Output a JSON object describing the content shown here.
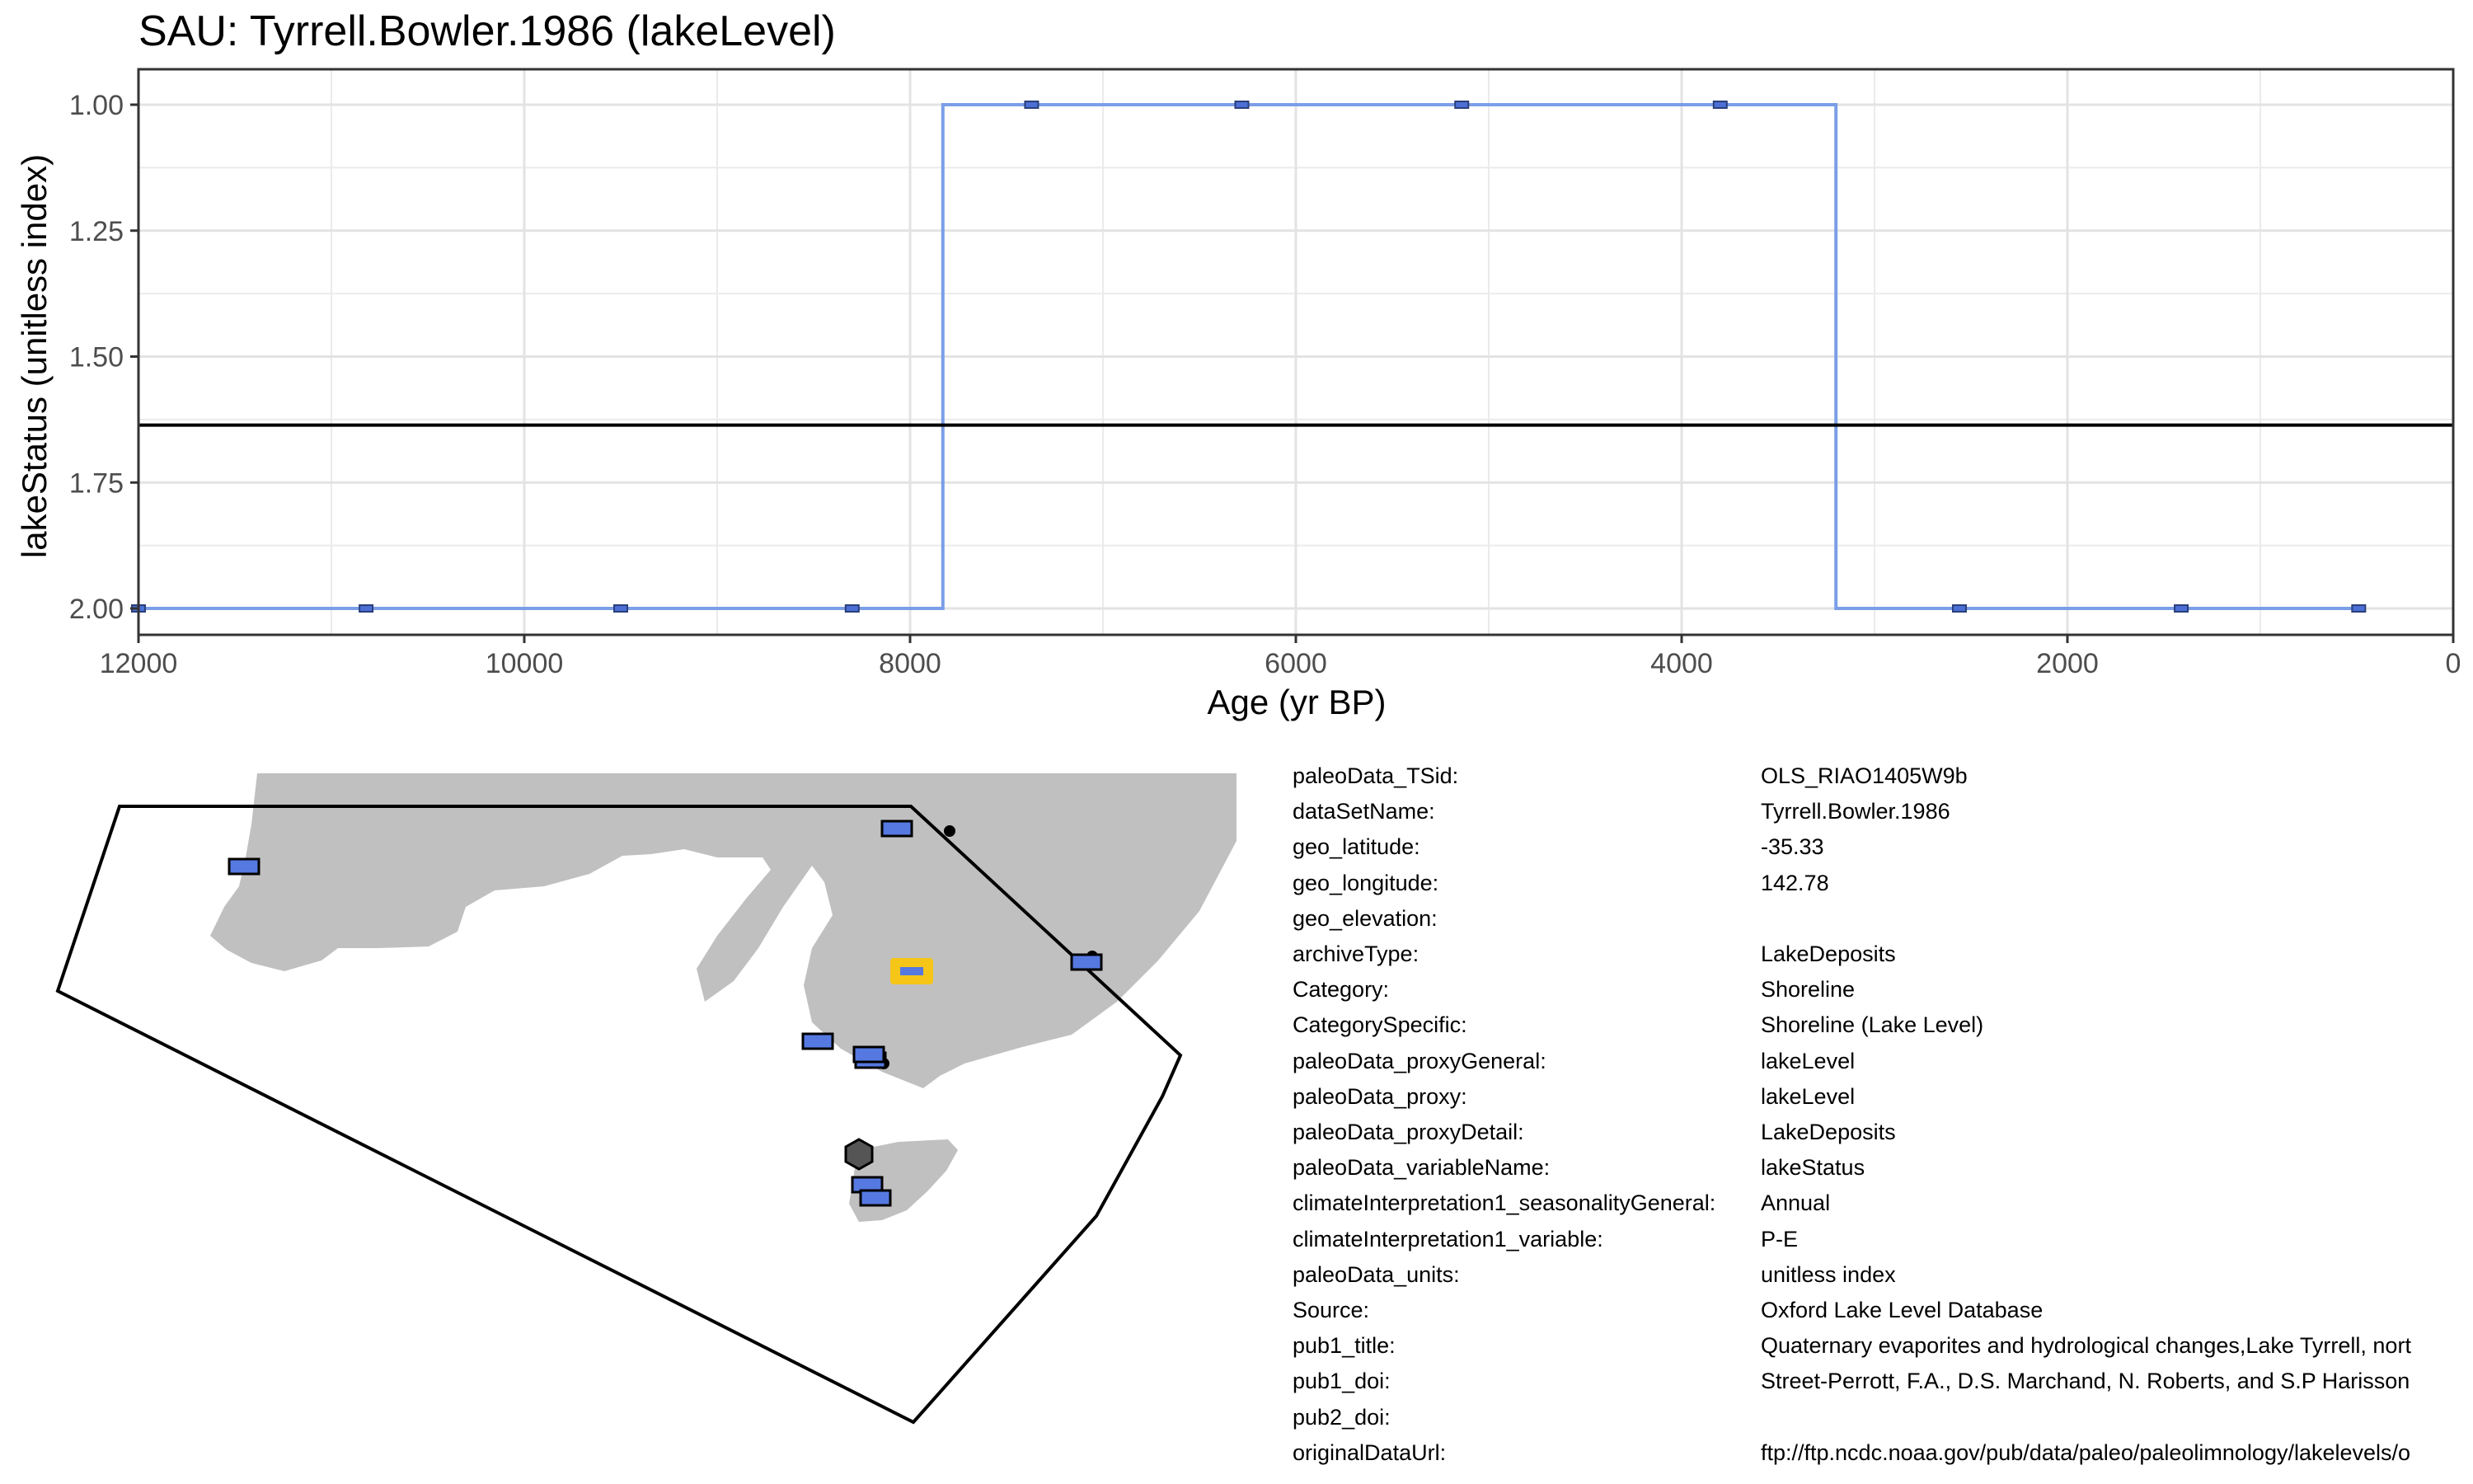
{
  "chart_data": {
    "type": "line",
    "title": "SAU: Tyrrell.Bowler.1986 (lakeLevel)",
    "xlabel": "Age (yr BP)",
    "ylabel": "lakeStatus (unitless index)",
    "xlim": [
      12000,
      0
    ],
    "ylim": [
      2.0,
      1.0
    ],
    "x_reversed": true,
    "y_reversed": true,
    "x_ticks": [
      12000,
      10000,
      8000,
      6000,
      4000,
      2000,
      0
    ],
    "x_tick_labels": [
      "12000",
      "10000",
      "8000",
      "6000",
      "4000",
      "2000",
      "0"
    ],
    "y_ticks": [
      1.0,
      1.25,
      1.5,
      1.75,
      2.0
    ],
    "y_tick_labels": [
      "1.00",
      "1.25",
      "1.50",
      "1.75",
      "2.00"
    ],
    "grid": true,
    "step_line": {
      "color": "#7B9EE8",
      "x": [
        12000,
        7830,
        7830,
        3200,
        3200,
        500
      ],
      "y": [
        2.0,
        2.0,
        1.0,
        1.0,
        2.0,
        2.0
      ]
    },
    "points": {
      "color": "#4C6FD6",
      "x": [
        12000,
        10820,
        9500,
        8300,
        7370,
        6280,
        5140,
        3800,
        2560,
        1410,
        490
      ],
      "y": [
        2.0,
        2.0,
        2.0,
        2.0,
        1.0,
        1.0,
        1.0,
        1.0,
        2.0,
        2.0,
        2.0
      ]
    },
    "mean_line": {
      "y": 1.636,
      "color": "#000000"
    }
  },
  "map": {
    "land_color": "#C0C0C0",
    "marker_color": "#5579E0",
    "highlight_color": "#F5C518"
  },
  "metadata": [
    {
      "key": "paleoData_TSid:",
      "value": "OLS_RIAO1405W9b"
    },
    {
      "key": "dataSetName:",
      "value": "Tyrrell.Bowler.1986"
    },
    {
      "key": "geo_latitude:",
      "value": "-35.33"
    },
    {
      "key": "geo_longitude:",
      "value": "142.78"
    },
    {
      "key": "geo_elevation:",
      "value": ""
    },
    {
      "key": "archiveType:",
      "value": "LakeDeposits"
    },
    {
      "key": "Category:",
      "value": "Shoreline"
    },
    {
      "key": "CategorySpecific:",
      "value": "Shoreline (Lake Level)"
    },
    {
      "key": "paleoData_proxyGeneral:",
      "value": "lakeLevel"
    },
    {
      "key": "paleoData_proxy:",
      "value": "lakeLevel"
    },
    {
      "key": "paleoData_proxyDetail:",
      "value": "LakeDeposits"
    },
    {
      "key": "paleoData_variableName:",
      "value": "lakeStatus"
    },
    {
      "key": "climateInterpretation1_seasonalityGeneral:",
      "value": "Annual"
    },
    {
      "key": "climateInterpretation1_variable:",
      "value": "P-E"
    },
    {
      "key": "paleoData_units:",
      "value": "unitless index"
    },
    {
      "key": "Source:",
      "value": "Oxford Lake Level Database"
    },
    {
      "key": "pub1_title:",
      "value": "Quaternary evaporites and hydrological changes,Lake Tyrrell, nort"
    },
    {
      "key": "pub1_doi:",
      "value": "Street-Perrott, F.A., D.S. Marchand, N. Roberts, and S.P Harisson"
    },
    {
      "key": "pub2_doi:",
      "value": ""
    },
    {
      "key": "originalDataUrl:",
      "value": "ftp://ftp.ncdc.noaa.gov/pub/data/paleo/paleolimnology/lakelevels/o"
    }
  ]
}
